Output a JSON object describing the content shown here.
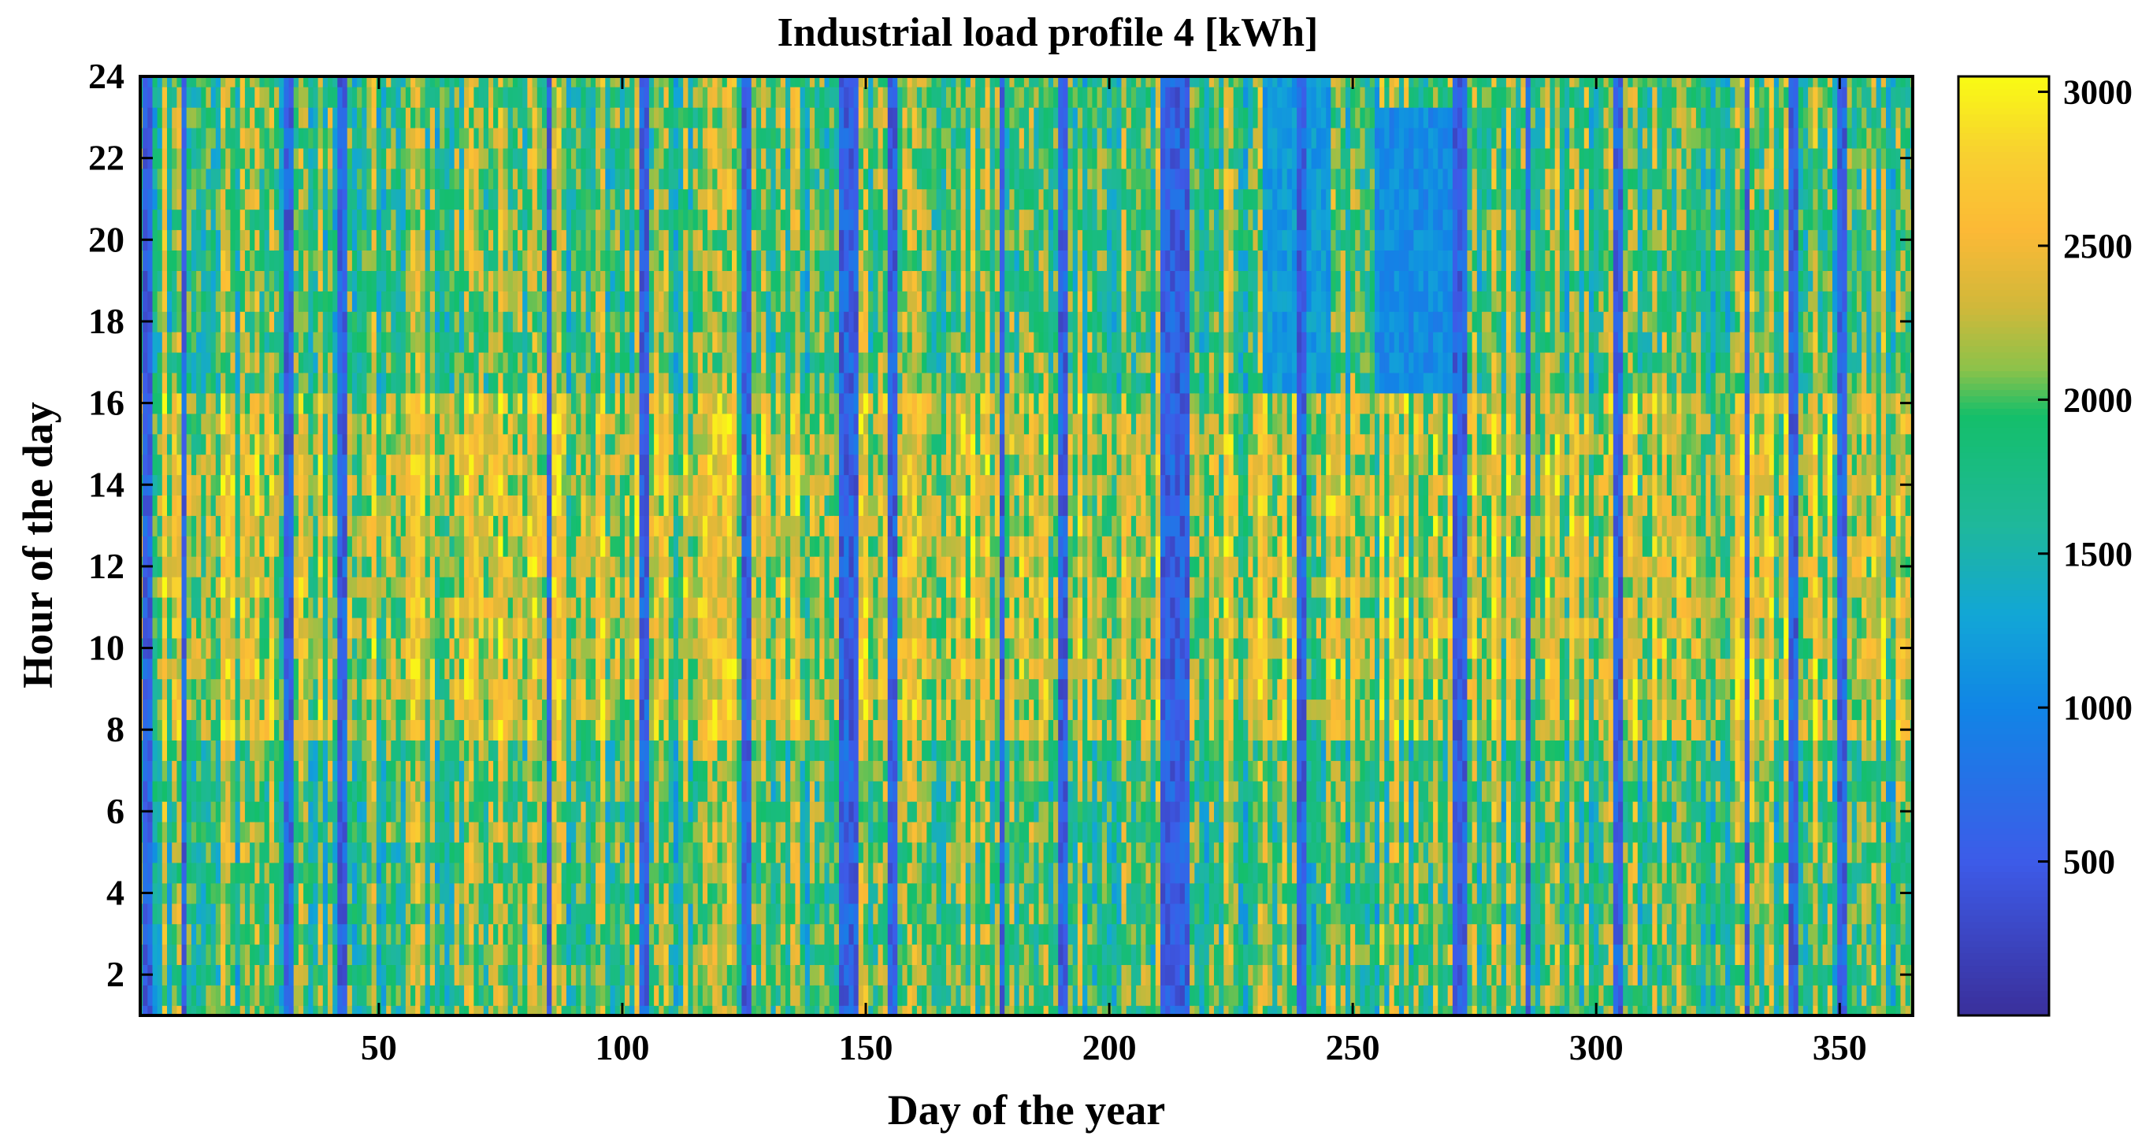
{
  "chart_data": {
    "type": "heatmap",
    "title": "Industrial load profile 4 [kWh]",
    "xlabel": "Day of the year",
    "ylabel": "Hour of the day",
    "xlim": [
      1,
      365
    ],
    "ylim": [
      1,
      24
    ],
    "xticks": [
      50,
      100,
      150,
      200,
      250,
      300,
      350
    ],
    "yticks": [
      2,
      4,
      6,
      8,
      10,
      12,
      14,
      16,
      18,
      20,
      22,
      24
    ],
    "colorbar": {
      "range": [
        0,
        3050
      ],
      "ticks": [
        500,
        1000,
        1500,
        2000,
        2500,
        3000
      ],
      "stops": [
        {
          "v": 0,
          "color": "#3a2f9a"
        },
        {
          "v": 500,
          "color": "#3d5be8"
        },
        {
          "v": 1000,
          "color": "#1185e6"
        },
        {
          "v": 1300,
          "color": "#12a6d6"
        },
        {
          "v": 1600,
          "color": "#1fb89a"
        },
        {
          "v": 1950,
          "color": "#14bf6a"
        },
        {
          "v": 2100,
          "color": "#8cc24a"
        },
        {
          "v": 2300,
          "color": "#d0b83a"
        },
        {
          "v": 2550,
          "color": "#fcb936"
        },
        {
          "v": 2800,
          "color": "#f8d030"
        },
        {
          "v": 3050,
          "color": "#f9fb14"
        }
      ]
    },
    "grid": false,
    "low_load_days": [
      2,
      3,
      10,
      31,
      32,
      42,
      43,
      85,
      104,
      105,
      125,
      126,
      145,
      146,
      147,
      148,
      155,
      156,
      178,
      190,
      191,
      211,
      212,
      213,
      214,
      215,
      216,
      239,
      240,
      271,
      272,
      273,
      286,
      304,
      305,
      331,
      340,
      341,
      350,
      351
    ],
    "low_evening_periods": [
      {
        "days": [
          232,
          245
        ],
        "hours": [
          16.5,
          24
        ],
        "value": 1200
      },
      {
        "days": [
          255,
          270
        ],
        "hours": [
          16.5,
          23
        ],
        "value": 1050
      }
    ]
  }
}
